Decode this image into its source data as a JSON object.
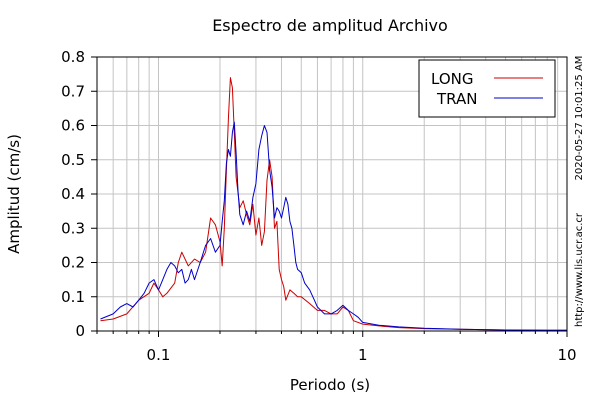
{
  "chart_data": {
    "type": "line",
    "title": "Espectro de amplitud Archivo",
    "xlabel": "Periodo (s)",
    "ylabel": "Amplitud (cm/s)",
    "x_scale": "log",
    "xlim": [
      0.05,
      10
    ],
    "ylim": [
      0,
      0.8
    ],
    "x_ticks": [
      {
        "value": 0.1,
        "label": "0.1"
      },
      {
        "value": 1,
        "label": "1"
      },
      {
        "value": 10,
        "label": "10"
      }
    ],
    "y_ticks": [
      {
        "value": 0,
        "label": "0"
      },
      {
        "value": 0.1,
        "label": "0.1"
      },
      {
        "value": 0.2,
        "label": "0.2"
      },
      {
        "value": 0.3,
        "label": "0.3"
      },
      {
        "value": 0.4,
        "label": "0.4"
      },
      {
        "value": 0.5,
        "label": "0.5"
      },
      {
        "value": 0.6,
        "label": "0.6"
      },
      {
        "value": 0.7,
        "label": "0.7"
      },
      {
        "value": 0.8,
        "label": "0.8"
      }
    ],
    "grid": true,
    "legend_position": "top-right",
    "series": [
      {
        "name": "LONG",
        "color": "#cc0000",
        "points": [
          [
            0.052,
            0.03
          ],
          [
            0.06,
            0.035
          ],
          [
            0.07,
            0.05
          ],
          [
            0.08,
            0.09
          ],
          [
            0.09,
            0.11
          ],
          [
            0.095,
            0.14
          ],
          [
            0.1,
            0.12
          ],
          [
            0.105,
            0.1
          ],
          [
            0.11,
            0.11
          ],
          [
            0.12,
            0.14
          ],
          [
            0.125,
            0.2
          ],
          [
            0.13,
            0.23
          ],
          [
            0.14,
            0.19
          ],
          [
            0.15,
            0.21
          ],
          [
            0.16,
            0.2
          ],
          [
            0.17,
            0.23
          ],
          [
            0.18,
            0.33
          ],
          [
            0.19,
            0.31
          ],
          [
            0.2,
            0.26
          ],
          [
            0.205,
            0.19
          ],
          [
            0.21,
            0.3
          ],
          [
            0.215,
            0.47
          ],
          [
            0.22,
            0.62
          ],
          [
            0.225,
            0.74
          ],
          [
            0.23,
            0.71
          ],
          [
            0.235,
            0.58
          ],
          [
            0.24,
            0.45
          ],
          [
            0.25,
            0.36
          ],
          [
            0.26,
            0.38
          ],
          [
            0.27,
            0.34
          ],
          [
            0.28,
            0.31
          ],
          [
            0.29,
            0.37
          ],
          [
            0.3,
            0.28
          ],
          [
            0.31,
            0.33
          ],
          [
            0.32,
            0.25
          ],
          [
            0.33,
            0.29
          ],
          [
            0.34,
            0.44
          ],
          [
            0.35,
            0.5
          ],
          [
            0.36,
            0.45
          ],
          [
            0.37,
            0.3
          ],
          [
            0.38,
            0.32
          ],
          [
            0.39,
            0.18
          ],
          [
            0.4,
            0.15
          ],
          [
            0.41,
            0.13
          ],
          [
            0.42,
            0.09
          ],
          [
            0.44,
            0.12
          ],
          [
            0.46,
            0.11
          ],
          [
            0.48,
            0.1
          ],
          [
            0.5,
            0.1
          ],
          [
            0.55,
            0.08
          ],
          [
            0.6,
            0.06
          ],
          [
            0.65,
            0.06
          ],
          [
            0.7,
            0.05
          ],
          [
            0.75,
            0.05
          ],
          [
            0.8,
            0.07
          ],
          [
            0.85,
            0.06
          ],
          [
            0.9,
            0.03
          ],
          [
            1.0,
            0.02
          ],
          [
            1.2,
            0.015
          ],
          [
            1.5,
            0.01
          ],
          [
            2.0,
            0.007
          ],
          [
            3.0,
            0.005
          ],
          [
            5.0,
            0.003
          ],
          [
            8.0,
            0.002
          ],
          [
            10.0,
            0.002
          ]
        ]
      },
      {
        "name": "TRAN",
        "color": "#0000cc",
        "points": [
          [
            0.052,
            0.035
          ],
          [
            0.06,
            0.05
          ],
          [
            0.065,
            0.07
          ],
          [
            0.07,
            0.08
          ],
          [
            0.075,
            0.07
          ],
          [
            0.08,
            0.09
          ],
          [
            0.085,
            0.11
          ],
          [
            0.09,
            0.14
          ],
          [
            0.095,
            0.15
          ],
          [
            0.1,
            0.12
          ],
          [
            0.105,
            0.15
          ],
          [
            0.11,
            0.18
          ],
          [
            0.115,
            0.2
          ],
          [
            0.12,
            0.19
          ],
          [
            0.125,
            0.17
          ],
          [
            0.13,
            0.18
          ],
          [
            0.135,
            0.14
          ],
          [
            0.14,
            0.15
          ],
          [
            0.145,
            0.18
          ],
          [
            0.15,
            0.15
          ],
          [
            0.16,
            0.2
          ],
          [
            0.17,
            0.25
          ],
          [
            0.18,
            0.27
          ],
          [
            0.19,
            0.23
          ],
          [
            0.2,
            0.25
          ],
          [
            0.205,
            0.32
          ],
          [
            0.21,
            0.38
          ],
          [
            0.215,
            0.49
          ],
          [
            0.22,
            0.53
          ],
          [
            0.225,
            0.51
          ],
          [
            0.23,
            0.58
          ],
          [
            0.235,
            0.61
          ],
          [
            0.24,
            0.52
          ],
          [
            0.245,
            0.41
          ],
          [
            0.25,
            0.34
          ],
          [
            0.26,
            0.31
          ],
          [
            0.27,
            0.35
          ],
          [
            0.28,
            0.32
          ],
          [
            0.29,
            0.39
          ],
          [
            0.3,
            0.43
          ],
          [
            0.31,
            0.53
          ],
          [
            0.32,
            0.57
          ],
          [
            0.33,
            0.6
          ],
          [
            0.34,
            0.58
          ],
          [
            0.35,
            0.47
          ],
          [
            0.36,
            0.42
          ],
          [
            0.37,
            0.33
          ],
          [
            0.38,
            0.36
          ],
          [
            0.39,
            0.35
          ],
          [
            0.4,
            0.33
          ],
          [
            0.41,
            0.36
          ],
          [
            0.42,
            0.39
          ],
          [
            0.43,
            0.37
          ],
          [
            0.44,
            0.32
          ],
          [
            0.45,
            0.3
          ],
          [
            0.46,
            0.25
          ],
          [
            0.47,
            0.2
          ],
          [
            0.48,
            0.18
          ],
          [
            0.5,
            0.17
          ],
          [
            0.52,
            0.14
          ],
          [
            0.55,
            0.12
          ],
          [
            0.58,
            0.09
          ],
          [
            0.6,
            0.07
          ],
          [
            0.65,
            0.05
          ],
          [
            0.7,
            0.05
          ],
          [
            0.75,
            0.06
          ],
          [
            0.8,
            0.075
          ],
          [
            0.85,
            0.06
          ],
          [
            0.9,
            0.05
          ],
          [
            0.95,
            0.04
          ],
          [
            1.0,
            0.025
          ],
          [
            1.2,
            0.017
          ],
          [
            1.5,
            0.012
          ],
          [
            2.0,
            0.008
          ],
          [
            3.0,
            0.005
          ],
          [
            5.0,
            0.003
          ],
          [
            8.0,
            0.002
          ],
          [
            10.0,
            0.002
          ]
        ]
      }
    ]
  },
  "side_text": {
    "timestamp": "2020-05-27 10:01:25 AM",
    "url": "http://www.lis.ucr.ac.cr"
  }
}
